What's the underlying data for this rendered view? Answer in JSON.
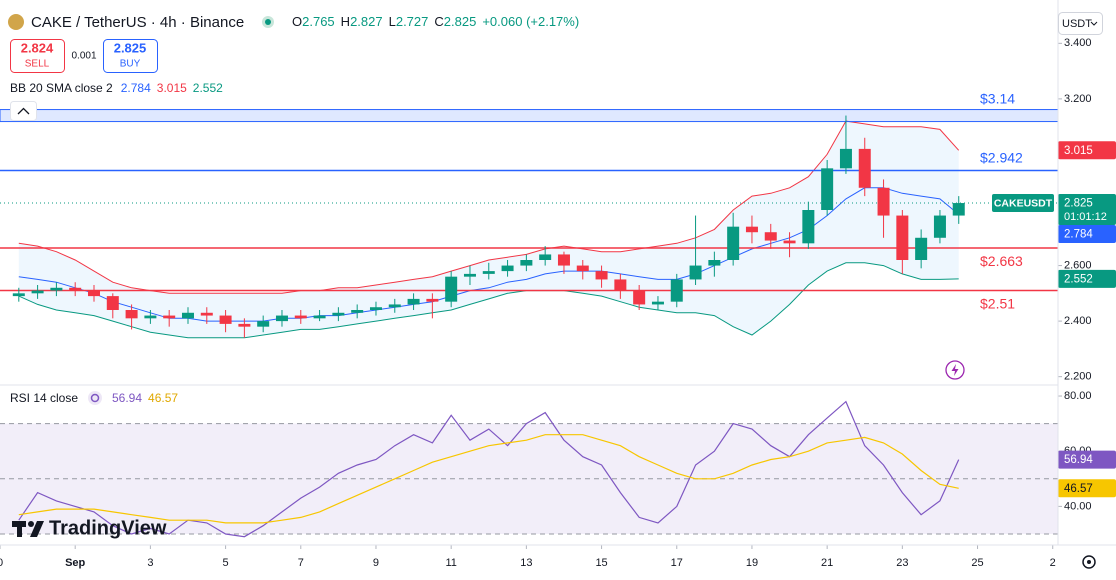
{
  "toolbar": {
    "symbol": "CAKE / TetherUS · 4h · Binance",
    "ohlc": [
      {
        "label": "O",
        "value": 2.765
      },
      {
        "label": "H",
        "value": 2.827
      },
      {
        "label": "L",
        "value": 2.727
      },
      {
        "label": "C",
        "value": 2.825
      }
    ],
    "change": "+0.060 (+2.17%)",
    "sell": {
      "price": 2.824,
      "label": "SELL"
    },
    "spread": 0.001,
    "buy": {
      "price": 2.825,
      "label": "BUY"
    },
    "currency": "USDT",
    "brand": "TradingView"
  },
  "chart_data": [
    {
      "type": "candlestick",
      "x": [
        -1.5,
        -1,
        -0.5,
        0,
        0.5,
        1,
        1.5,
        2,
        2.5,
        3,
        3.5,
        4,
        4.5,
        5,
        5.5,
        6,
        6.5,
        7,
        7.5,
        8,
        8.5,
        9,
        9.5,
        10,
        10.5,
        11,
        11.5,
        12,
        12.5,
        13,
        13.5,
        14,
        14.5,
        15,
        15.5,
        16,
        16.5,
        17,
        17.5,
        18,
        18.5,
        19,
        19.5,
        20,
        20.5,
        21,
        21.5,
        22,
        22.5,
        23,
        23.5
      ],
      "open": [
        2.49,
        2.5,
        2.51,
        2.52,
        2.51,
        2.49,
        2.44,
        2.41,
        2.42,
        2.41,
        2.43,
        2.42,
        2.39,
        2.38,
        2.4,
        2.42,
        2.41,
        2.42,
        2.43,
        2.44,
        2.45,
        2.46,
        2.48,
        2.47,
        2.56,
        2.57,
        2.58,
        2.6,
        2.62,
        2.64,
        2.6,
        2.58,
        2.55,
        2.51,
        2.46,
        2.47,
        2.55,
        2.6,
        2.62,
        2.74,
        2.72,
        2.69,
        2.68,
        2.8,
        2.95,
        3.02,
        2.88,
        2.78,
        2.62,
        2.7,
        2.78
      ],
      "high": [
        2.52,
        2.53,
        2.54,
        2.54,
        2.53,
        2.5,
        2.46,
        2.44,
        2.44,
        2.45,
        2.45,
        2.44,
        2.41,
        2.42,
        2.44,
        2.44,
        2.44,
        2.45,
        2.46,
        2.47,
        2.48,
        2.5,
        2.5,
        2.58,
        2.6,
        2.61,
        2.62,
        2.64,
        2.67,
        2.65,
        2.62,
        2.6,
        2.57,
        2.53,
        2.49,
        2.57,
        2.78,
        2.65,
        2.79,
        2.78,
        2.75,
        2.72,
        2.83,
        2.98,
        3.14,
        3.06,
        2.91,
        2.8,
        2.73,
        2.8,
        2.85
      ],
      "low": [
        2.47,
        2.48,
        2.49,
        2.49,
        2.47,
        2.41,
        2.37,
        2.39,
        2.38,
        2.39,
        2.39,
        2.36,
        2.34,
        2.36,
        2.38,
        2.39,
        2.4,
        2.4,
        2.41,
        2.42,
        2.43,
        2.44,
        2.41,
        2.45,
        2.53,
        2.55,
        2.56,
        2.58,
        2.6,
        2.57,
        2.55,
        2.52,
        2.48,
        2.44,
        2.44,
        2.45,
        2.53,
        2.56,
        2.6,
        2.68,
        2.66,
        2.63,
        2.66,
        2.78,
        2.93,
        2.85,
        2.7,
        2.57,
        2.59,
        2.68,
        2.75
      ],
      "close": [
        2.5,
        2.51,
        2.52,
        2.51,
        2.49,
        2.44,
        2.41,
        2.42,
        2.41,
        2.43,
        2.42,
        2.39,
        2.38,
        2.4,
        2.42,
        2.41,
        2.42,
        2.43,
        2.44,
        2.45,
        2.46,
        2.48,
        2.47,
        2.56,
        2.57,
        2.58,
        2.6,
        2.62,
        2.64,
        2.6,
        2.58,
        2.55,
        2.51,
        2.46,
        2.47,
        2.55,
        2.6,
        2.62,
        2.74,
        2.72,
        2.69,
        2.68,
        2.8,
        2.95,
        3.02,
        2.88,
        2.78,
        2.62,
        2.7,
        2.78,
        2.825
      ],
      "up_color": "#089981",
      "down_color": "#f23645",
      "xlim": [
        -2,
        26.14
      ],
      "ylim": [
        2.17,
        3.52
      ],
      "xticks": [
        {
          "value": -2,
          "label": "0"
        },
        {
          "value": 0,
          "label": "Sep"
        },
        {
          "value": 2,
          "label": "3"
        },
        {
          "value": 4,
          "label": "5"
        },
        {
          "value": 6,
          "label": "7"
        },
        {
          "value": 8,
          "label": "9"
        },
        {
          "value": 10,
          "label": "11"
        },
        {
          "value": 12,
          "label": "13"
        },
        {
          "value": 14,
          "label": "15"
        },
        {
          "value": 16,
          "label": "17"
        },
        {
          "value": 18,
          "label": "19"
        },
        {
          "value": 20,
          "label": "21"
        },
        {
          "value": 22,
          "label": "23"
        },
        {
          "value": 24,
          "label": "25"
        },
        {
          "value": 26,
          "label": "2"
        }
      ],
      "yticks": [
        {
          "value": 3.4,
          "label": "3.400"
        },
        {
          "value": 3.2,
          "label": "3.200"
        },
        {
          "value": 2.6,
          "label": "2.600"
        },
        {
          "value": 2.4,
          "label": "2.400"
        },
        {
          "value": 2.2,
          "label": "2.200"
        }
      ],
      "symbol_label": "CAKEUSDT",
      "countdown": "01:01:12",
      "bollinger": {
        "label": "BB 20 SMA close 2",
        "basis": {
          "color": "#2962ff",
          "values": [
            2.56,
            2.55,
            2.54,
            2.52,
            2.5,
            2.47,
            2.45,
            2.43,
            2.41,
            2.41,
            2.4,
            2.4,
            2.4,
            2.4,
            2.41,
            2.41,
            2.42,
            2.42,
            2.43,
            2.44,
            2.45,
            2.46,
            2.47,
            2.49,
            2.51,
            2.52,
            2.54,
            2.55,
            2.57,
            2.58,
            2.58,
            2.58,
            2.57,
            2.56,
            2.55,
            2.55,
            2.57,
            2.6,
            2.63,
            2.66,
            2.68,
            2.7,
            2.73,
            2.78,
            2.84,
            2.88,
            2.88,
            2.86,
            2.85,
            2.84,
            2.784
          ]
        },
        "upper": {
          "color": "#f23645",
          "values": [
            2.68,
            2.67,
            2.65,
            2.62,
            2.58,
            2.54,
            2.52,
            2.51,
            2.5,
            2.5,
            2.5,
            2.5,
            2.5,
            2.5,
            2.5,
            2.51,
            2.51,
            2.52,
            2.52,
            2.53,
            2.54,
            2.55,
            2.56,
            2.58,
            2.6,
            2.62,
            2.63,
            2.64,
            2.66,
            2.67,
            2.66,
            2.65,
            2.65,
            2.66,
            2.67,
            2.68,
            2.7,
            2.73,
            2.8,
            2.85,
            2.86,
            2.88,
            2.92,
            3.0,
            3.12,
            3.11,
            3.1,
            3.1,
            3.1,
            3.09,
            3.015
          ]
        },
        "lower": {
          "color": "#089981",
          "values": [
            2.49,
            2.46,
            2.44,
            2.43,
            2.42,
            2.4,
            2.38,
            2.36,
            2.35,
            2.34,
            2.34,
            2.34,
            2.34,
            2.35,
            2.36,
            2.37,
            2.37,
            2.38,
            2.39,
            2.4,
            2.41,
            2.42,
            2.43,
            2.44,
            2.46,
            2.48,
            2.5,
            2.51,
            2.51,
            2.51,
            2.5,
            2.49,
            2.47,
            2.45,
            2.44,
            2.43,
            2.43,
            2.42,
            2.38,
            2.35,
            2.4,
            2.46,
            2.53,
            2.58,
            2.61,
            2.61,
            2.6,
            2.57,
            2.55,
            2.55,
            2.552
          ]
        }
      },
      "levels": [
        {
          "value": 3.14,
          "label": "$3.14",
          "color": "#2962ff",
          "style": "band"
        },
        {
          "value": 2.942,
          "label": "$2.942",
          "color": "#2962ff",
          "style": "line"
        },
        {
          "value": 2.663,
          "label": "$2.663",
          "color": "#f23645",
          "style": "line"
        },
        {
          "value": 2.51,
          "label": "$2.51",
          "color": "#f23645",
          "style": "line"
        }
      ]
    },
    {
      "type": "line",
      "title": "RSI 14 close",
      "x": [
        -1.5,
        -1,
        -0.5,
        0,
        0.5,
        1,
        1.5,
        2,
        2.5,
        3,
        3.5,
        4,
        4.5,
        5,
        5.5,
        6,
        6.5,
        7,
        7.5,
        8,
        8.5,
        9,
        9.5,
        10,
        10.5,
        11,
        11.5,
        12,
        12.5,
        13,
        13.5,
        14,
        14.5,
        15,
        15.5,
        16,
        16.5,
        17,
        17.5,
        18,
        18.5,
        19,
        19.5,
        20,
        20.5,
        21,
        21.5,
        22,
        22.5,
        23,
        23.5
      ],
      "series": [
        {
          "color": "#7e57c2",
          "values": [
            35,
            45,
            42,
            40,
            38,
            33,
            30,
            32,
            30,
            35,
            34,
            30,
            29,
            33,
            38,
            43,
            47,
            52,
            55,
            57,
            62,
            66,
            63,
            73,
            64,
            68,
            62,
            70,
            74,
            64,
            58,
            55,
            45,
            36,
            34,
            40,
            55,
            60,
            70,
            68,
            62,
            58,
            66,
            72,
            78,
            62,
            55,
            45,
            37,
            42,
            56.94
          ]
        },
        {
          "color": "#f7c600",
          "values": [
            37,
            38,
            39,
            39,
            39,
            38,
            37,
            36,
            35,
            35,
            35,
            34,
            34,
            34,
            35,
            36,
            38,
            41,
            44,
            47,
            50,
            53,
            56,
            58,
            60,
            62,
            63,
            64,
            66,
            66,
            66,
            64,
            62,
            58,
            55,
            52,
            50,
            50,
            52,
            55,
            57,
            58,
            60,
            63,
            64,
            65,
            63,
            59,
            53,
            48,
            46.57
          ]
        }
      ],
      "xlim": [
        -2,
        26.14
      ],
      "ylim": [
        26,
        84
      ],
      "yticks": [
        {
          "value": 80,
          "label": "80.00"
        },
        {
          "value": 60,
          "label": "60.00"
        },
        {
          "value": 40,
          "label": "40.00"
        }
      ],
      "hlines": [
        70,
        50,
        30
      ]
    }
  ]
}
